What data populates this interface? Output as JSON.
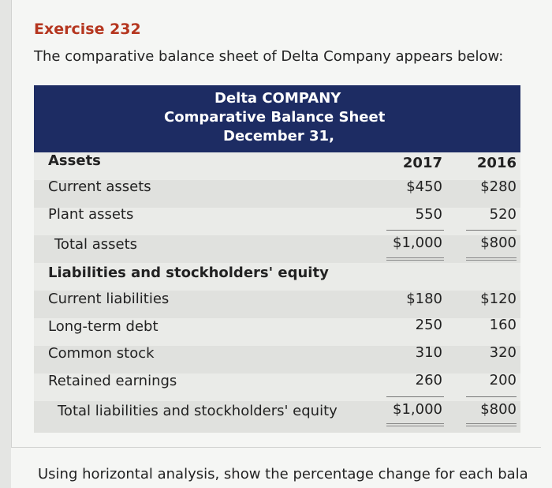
{
  "exercise": {
    "title": "Exercise 232",
    "intro": "The comparative balance sheet of Delta Company appears below:"
  },
  "sheet": {
    "company": "Delta COMPANY",
    "statement": "Comparative Balance Sheet",
    "date": "December 31,",
    "years": [
      "2017",
      "2016"
    ],
    "assets_heading": "Assets",
    "rows": [
      {
        "label": "Current assets",
        "y2017": "$450",
        "y2016": "$280"
      },
      {
        "label": "Plant assets",
        "y2017": "550",
        "y2016": "520"
      },
      {
        "label": "Total assets",
        "y2017": "$1,000",
        "y2016": "$800"
      }
    ],
    "liab_heading": "Liabilities and stockholders' equity",
    "liab_rows": [
      {
        "label": "Current liabilities",
        "y2017": "$180",
        "y2016": "$120"
      },
      {
        "label": "Long-term debt",
        "y2017": "250",
        "y2016": "160"
      },
      {
        "label": "Common stock",
        "y2017": "310",
        "y2016": "320"
      },
      {
        "label": "Retained earnings",
        "y2017": "260",
        "y2016": "200"
      },
      {
        "label": "Total liabilities and stockholders' equity",
        "y2017": "$1,000",
        "y2016": "$800"
      }
    ]
  },
  "question": {
    "text": "Using horizontal analysis, show the percentage change for each bala"
  },
  "colors": {
    "header_bg": "#1d2c63",
    "title_red": "#b5361f"
  }
}
